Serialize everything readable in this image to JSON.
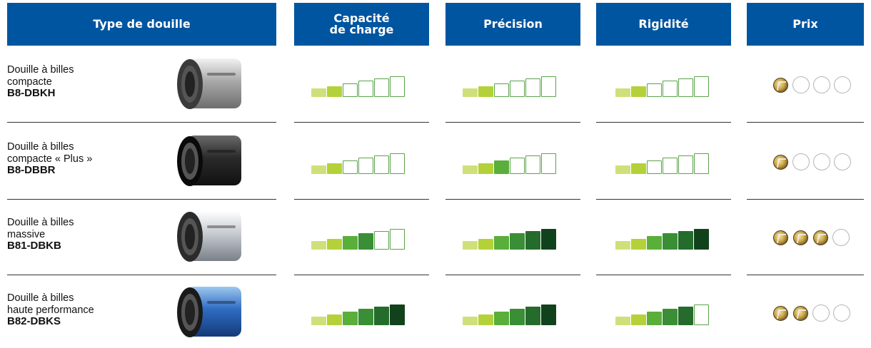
{
  "headers": {
    "type": "Type de douille",
    "capacity": "Capacité\nde charge",
    "precision": "Précision",
    "rigidity": "Rigidité",
    "price": "Prix"
  },
  "colors": {
    "header_bg": "#0055a0",
    "levels": [
      "#cfe07a",
      "#b5d13a",
      "#5aae3a",
      "#3a8e36",
      "#256b2b",
      "#12421c"
    ]
  },
  "rows": [
    {
      "name": "Douille à billes\ncompacte",
      "code": "B8-DBKH",
      "image": "bushing-silver-icon",
      "capacity": 2,
      "precision": 2,
      "rigidity": 2,
      "price": 1
    },
    {
      "name": "Douille à billes\ncompacte « Plus »",
      "code": "B8-DBBR",
      "image": "bushing-black-icon",
      "capacity": 2,
      "precision": 3,
      "rigidity": 2,
      "price": 1
    },
    {
      "name": "Douille à billes\nmassive",
      "code": "B81-DBKB",
      "image": "bushing-steel-icon",
      "capacity": 4,
      "precision": 6,
      "rigidity": 6,
      "price": 3
    },
    {
      "name": "Douille à billes\nhaute performance",
      "code": "B82-DBKS",
      "image": "bushing-blue-icon",
      "capacity": 6,
      "precision": 6,
      "rigidity": 5,
      "price": 2
    }
  ]
}
